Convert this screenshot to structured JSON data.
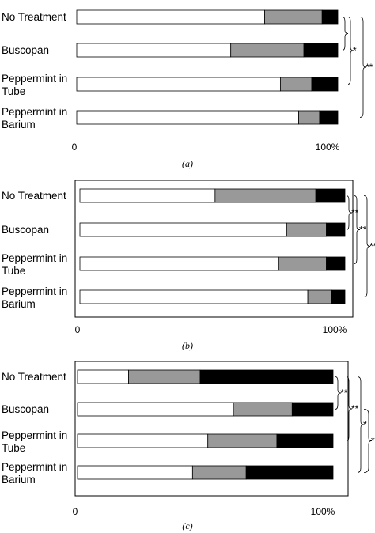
{
  "chart_data": [
    {
      "type": "bar",
      "stacked": true,
      "orientation": "horizontal",
      "panel": "(a)",
      "categories": [
        "No Treatment",
        "Buscopan",
        "Peppermint in Tube",
        "Peppermint in Barium"
      ],
      "series": [
        {
          "values": [
            72,
            59,
            78,
            85
          ],
          "color": "#ffffff"
        },
        {
          "values": [
            22,
            28,
            12,
            8
          ],
          "color": "#999999"
        },
        {
          "values": [
            6,
            13,
            10,
            7
          ],
          "color": "#000000"
        }
      ],
      "xticks": [
        "0",
        "100%"
      ],
      "xlim": [
        0,
        100
      ],
      "grid": false,
      "significance": [
        {
          "from": "No Treatment",
          "to": "Buscopan",
          "label": ""
        },
        {
          "from": "No Treatment",
          "to": "Peppermint in Tube",
          "label": "*"
        },
        {
          "from": "No Treatment",
          "to": "Peppermint in Barium",
          "label": "**"
        }
      ]
    },
    {
      "type": "bar",
      "stacked": true,
      "orientation": "horizontal",
      "panel": "(b)",
      "categories": [
        "No Treatment",
        "Buscopan",
        "Peppermint in Tube",
        "Peppermint in Barium"
      ],
      "series": [
        {
          "values": [
            51,
            78,
            75,
            86
          ],
          "color": "#ffffff"
        },
        {
          "values": [
            38,
            15,
            18,
            9
          ],
          "color": "#999999"
        },
        {
          "values": [
            11,
            7,
            7,
            5
          ],
          "color": "#000000"
        }
      ],
      "xticks": [
        "0",
        "100%"
      ],
      "xlim": [
        0,
        100
      ],
      "grid": false,
      "significance": [
        {
          "from": "No Treatment",
          "to": "Buscopan",
          "label": "**"
        },
        {
          "from": "No Treatment",
          "to": "Peppermint in Tube",
          "label": "**"
        },
        {
          "from": "No Treatment",
          "to": "Peppermint in Barium",
          "label": "**"
        }
      ]
    },
    {
      "type": "bar",
      "stacked": true,
      "orientation": "horizontal",
      "panel": "(c)",
      "categories": [
        "No Treatment",
        "Buscopan",
        "Peppermint in Tube",
        "Peppermint in Barium"
      ],
      "series": [
        {
          "values": [
            20,
            61,
            51,
            45
          ],
          "color": "#ffffff"
        },
        {
          "values": [
            28,
            23,
            27,
            21
          ],
          "color": "#999999"
        },
        {
          "values": [
            52,
            16,
            22,
            34
          ],
          "color": "#000000"
        }
      ],
      "xticks": [
        "0",
        "100%"
      ],
      "xlim": [
        0,
        100
      ],
      "grid": false,
      "significance": [
        {
          "from": "No Treatment",
          "to": "Buscopan",
          "label": "**"
        },
        {
          "from": "No Treatment",
          "to": "Peppermint in Tube",
          "label": "**"
        },
        {
          "from": "No Treatment",
          "to": "Peppermint in Barium",
          "label": "*"
        },
        {
          "from": "Buscopan",
          "to": "Peppermint in Barium",
          "label": "*"
        }
      ]
    }
  ]
}
